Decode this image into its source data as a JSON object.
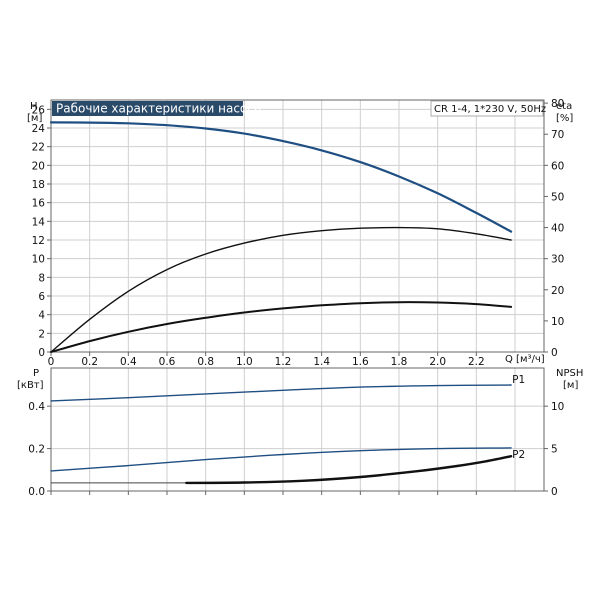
{
  "chart_data": [
    {
      "type": "line",
      "title": "Рабочие характеристики насоса",
      "info": "CR 1-4, 1*230 V, 50Hz",
      "y_left": {
        "label": "H",
        "unit": "[м]",
        "range": [
          0,
          27
        ],
        "ticks": [
          0,
          2,
          4,
          6,
          8,
          10,
          12,
          14,
          16,
          18,
          20,
          22,
          24,
          26
        ]
      },
      "y_right": {
        "label": "eta",
        "unit": "[%]",
        "range": [
          0,
          81
        ],
        "ticks": [
          0,
          10,
          20,
          30,
          40,
          50,
          60,
          70,
          80
        ]
      },
      "x": {
        "label": "Q [м³/ч]",
        "range": [
          0,
          2.55
        ],
        "ticks": [
          0,
          0.2,
          0.4,
          0.6,
          0.8,
          1.0,
          1.2,
          1.4,
          1.6,
          1.8,
          2.0,
          2.2
        ],
        "tick_labels": [
          "0",
          "0.2",
          "0.4",
          "0.6",
          "0.8",
          "1.0",
          "1.2",
          "1.4",
          "1.6",
          "1.8",
          "2.0",
          "2.2"
        ]
      },
      "grid": true,
      "series": [
        {
          "axis": "left",
          "color": "#1f4f82",
          "values": [
            [
              0,
              24.6
            ],
            [
              0.2,
              24.58
            ],
            [
              0.4,
              24.5
            ],
            [
              0.6,
              24.3
            ],
            [
              0.8,
              23.95
            ],
            [
              1.0,
              23.4
            ],
            [
              1.2,
              22.6
            ],
            [
              1.4,
              21.6
            ],
            [
              1.6,
              20.35
            ],
            [
              1.8,
              18.8
            ],
            [
              2.0,
              17.0
            ],
            [
              2.2,
              14.9
            ],
            [
              2.38,
              12.9
            ]
          ]
        },
        {
          "axis": "right",
          "color": "#111111",
          "values": [
            [
              0,
              0
            ],
            [
              0.2,
              10.5
            ],
            [
              0.4,
              19.5
            ],
            [
              0.6,
              26.5
            ],
            [
              0.8,
              31.5
            ],
            [
              1.0,
              35.0
            ],
            [
              1.2,
              37.5
            ],
            [
              1.4,
              39.0
            ],
            [
              1.6,
              39.8
            ],
            [
              1.8,
              40.0
            ],
            [
              2.0,
              39.6
            ],
            [
              2.2,
              38.0
            ],
            [
              2.38,
              36.0
            ]
          ]
        },
        {
          "axis": "right",
          "color": "#111111",
          "values": [
            [
              0,
              0
            ],
            [
              0.2,
              3.5
            ],
            [
              0.4,
              6.5
            ],
            [
              0.6,
              9.0
            ],
            [
              0.8,
              11.0
            ],
            [
              1.0,
              12.7
            ],
            [
              1.2,
              14.0
            ],
            [
              1.4,
              15.0
            ],
            [
              1.6,
              15.7
            ],
            [
              1.8,
              16.0
            ],
            [
              2.0,
              15.9
            ],
            [
              2.2,
              15.4
            ],
            [
              2.38,
              14.5
            ]
          ]
        }
      ]
    },
    {
      "type": "line",
      "y_left": {
        "label": "P",
        "unit": "[кВт]",
        "range": [
          0,
          0.58
        ],
        "ticks": [
          0,
          0.2,
          0.4
        ],
        "tick_labels": [
          "0.0",
          "0.2",
          "0.4"
        ]
      },
      "y_right": {
        "label": "NPSH",
        "unit": "[м]",
        "range": [
          0,
          14.5
        ],
        "ticks": [
          0,
          5,
          10
        ]
      },
      "x": {
        "range": [
          0,
          2.55
        ]
      },
      "grid": true,
      "series": [
        {
          "name": "P1",
          "axis": "left",
          "color": "#1f4f82",
          "values": [
            [
              0,
              0.425
            ],
            [
              0.4,
              0.44
            ],
            [
              0.8,
              0.458
            ],
            [
              1.2,
              0.475
            ],
            [
              1.6,
              0.49
            ],
            [
              2.0,
              0.497
            ],
            [
              2.38,
              0.5
            ]
          ]
        },
        {
          "name": "P2",
          "axis": "left",
          "color": "#1f4f82",
          "values": [
            [
              0,
              0.095
            ],
            [
              0.4,
              0.12
            ],
            [
              0.8,
              0.148
            ],
            [
              1.2,
              0.172
            ],
            [
              1.6,
              0.19
            ],
            [
              2.0,
              0.2
            ],
            [
              2.38,
              0.203
            ]
          ]
        },
        {
          "axis": "left",
          "color": "#444444",
          "values": [
            [
              0,
              0.038
            ],
            [
              0.7,
              0.038
            ]
          ]
        },
        {
          "axis": "right",
          "color": "#111111",
          "values": [
            [
              0.7,
              0.95
            ],
            [
              1.0,
              1.0
            ],
            [
              1.3,
              1.2
            ],
            [
              1.6,
              1.65
            ],
            [
              1.9,
              2.35
            ],
            [
              2.1,
              2.95
            ],
            [
              2.25,
              3.5
            ],
            [
              2.38,
              4.1
            ]
          ]
        }
      ]
    }
  ]
}
